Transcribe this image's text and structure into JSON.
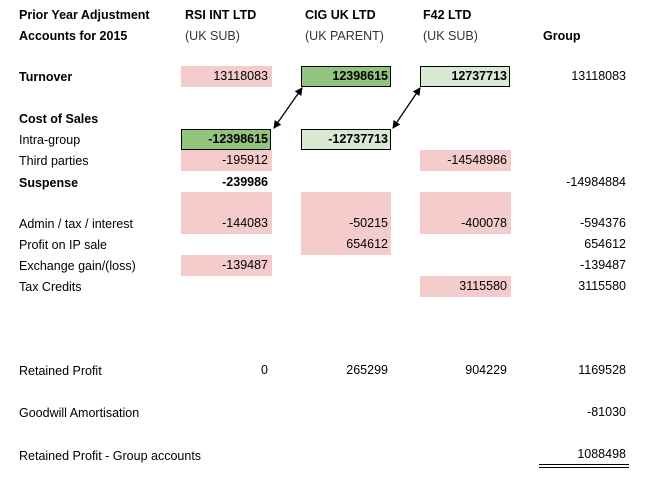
{
  "header": {
    "title_line1": "Prior Year Adjustment",
    "title_line2": "Accounts for 2015",
    "col_rsi": "RSI INT LTD",
    "col_rsi_sub": "(UK SUB)",
    "col_cig": "CIG UK LTD",
    "col_cig_sub": "(UK PARENT)",
    "col_f42": "F42 LTD",
    "col_f42_sub": "(UK SUB)",
    "col_group": "Group"
  },
  "labels": {
    "turnover": "Turnover",
    "cost_of_sales": "Cost of Sales",
    "intra_group": "Intra-group",
    "third_parties": "Third parties",
    "suspense": "Suspense",
    "admin": "Admin / tax / interest",
    "profit_ip": "Profit on IP sale",
    "exchange": "Exchange gain/(loss)",
    "tax_credits": "Tax Credits",
    "retained_profit": "Retained Profit",
    "goodwill": "Goodwill Amortisation",
    "retained_group": "Retained Profit - Group accounts"
  },
  "values": {
    "turnover": {
      "rsi": "13118083",
      "cig": "12398615",
      "f42": "12737713",
      "group": "13118083"
    },
    "intra_group": {
      "rsi": "-12398615",
      "cig": "-12737713"
    },
    "third_parties": {
      "rsi": "-195912",
      "f42": "-14548986"
    },
    "suspense": {
      "rsi": "-239986",
      "group": "-14984884"
    },
    "admin": {
      "rsi": "-144083",
      "cig": "-50215",
      "f42": "-400078",
      "group": "-594376"
    },
    "profit_ip": {
      "cig": "654612",
      "group": "654612"
    },
    "exchange": {
      "rsi": "-139487",
      "group": "-139487"
    },
    "tax_credits": {
      "f42": "3115580",
      "group": "3115580"
    },
    "retained_profit": {
      "rsi": "0",
      "cig": "265299",
      "f42": "904229",
      "group": "1169528"
    },
    "goodwill": {
      "group": "-81030"
    },
    "retained_group": {
      "group": "1088498"
    }
  },
  "colors": {
    "pink": "#f4cccc",
    "dark_green": "#93c47d",
    "light_green": "#d9ead3"
  }
}
